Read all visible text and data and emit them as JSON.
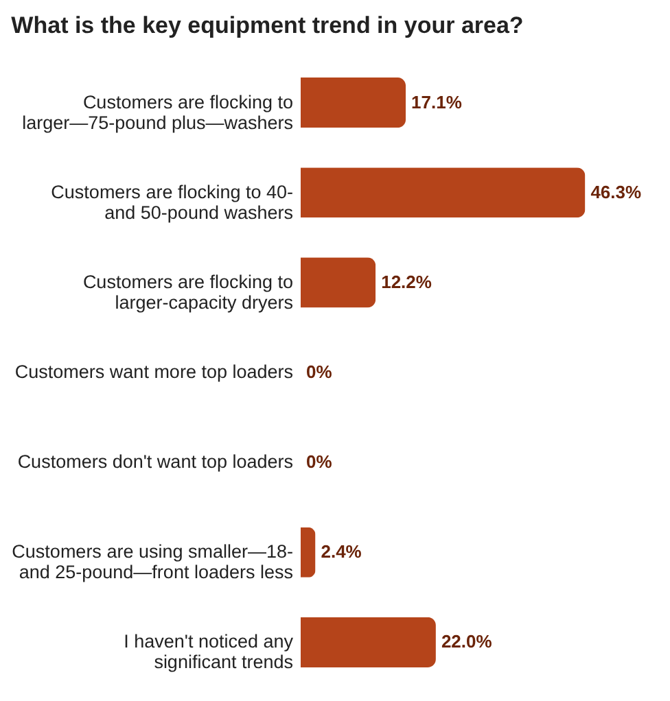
{
  "chart_data": {
    "type": "bar",
    "orientation": "horizontal",
    "title": "What is the key equipment trend in your area?",
    "categories": [
      "Customers are flocking to larger—75-pound plus—washers",
      "Customers are flocking to 40- and 50-pound washers",
      "Customers are flocking to larger-capacity dryers",
      "Customers want more top loaders",
      "Customers don't want top loaders",
      "Customers are using smaller—18- and 25-pound—front loaders less",
      "I haven't noticed any significant trends"
    ],
    "values": [
      17.1,
      46.3,
      12.2,
      0,
      0,
      2.4,
      22.0
    ],
    "value_labels": [
      "17.1%",
      "46.3%",
      "12.2%",
      "0%",
      "0%",
      "2.4%",
      "22.0%"
    ],
    "color": "#b5441a"
  }
}
